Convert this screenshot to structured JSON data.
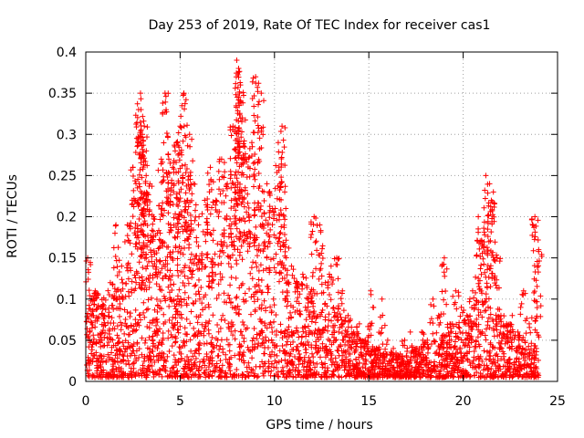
{
  "chart_data": {
    "type": "scatter",
    "title": "Day 253 of 2019, Rate Of TEC Index for receiver cas1",
    "xlabel": "GPS time / hours",
    "ylabel": "ROTI / TECUs",
    "xlim": [
      0,
      25
    ],
    "ylim": [
      0,
      0.4
    ],
    "xticks": [
      0,
      5,
      10,
      15,
      20,
      25
    ],
    "xtick_labels": [
      "0",
      "5",
      "10",
      "15",
      "20",
      "25"
    ],
    "yticks": [
      0,
      0.05,
      0.1,
      0.15,
      0.2,
      0.25,
      0.3,
      0.35,
      0.4
    ],
    "ytick_labels": [
      "0",
      "0.05",
      "0.1",
      "0.15",
      "0.2",
      "0.25",
      "0.3",
      "0.35",
      "0.4"
    ],
    "grid": true,
    "marker": "+",
    "series_color": "#ff0000",
    "series": [
      {
        "name": "cas1 ROTI",
        "x": [
          0.05,
          0.1,
          0.2,
          0.3,
          0.5,
          0.8,
          1.0,
          1.3,
          1.6,
          1.9,
          2.2,
          2.5,
          2.8,
          2.9,
          3.0,
          3.1,
          3.2,
          3.4,
          3.6,
          3.8,
          4.0,
          4.2,
          4.4,
          4.6,
          4.8,
          5.0,
          5.2,
          5.4,
          5.5,
          5.7,
          6.0,
          6.3,
          6.6,
          6.9,
          7.2,
          7.5,
          7.8,
          8.0,
          8.1,
          8.2,
          8.3,
          8.5,
          8.8,
          9.0,
          9.3,
          9.6,
          9.9,
          10.2,
          10.4,
          10.6,
          10.9,
          11.2,
          11.5,
          11.8,
          12.1,
          12.4,
          12.7,
          13.0,
          13.3,
          13.6,
          13.9,
          14.2,
          14.5,
          14.8,
          15.1,
          15.4,
          15.7,
          16.0,
          16.3,
          16.6,
          16.9,
          17.2,
          17.5,
          17.8,
          18.1,
          18.4,
          18.7,
          19.0,
          19.3,
          19.6,
          19.9,
          20.2,
          20.5,
          20.8,
          21.0,
          21.2,
          21.4,
          21.6,
          21.8,
          22.0,
          22.3,
          22.6,
          22.9,
          23.2,
          23.5,
          23.8,
          24.0
        ],
        "y": [
          0.02,
          0.15,
          0.06,
          0.1,
          0.11,
          0.09,
          0.08,
          0.12,
          0.19,
          0.14,
          0.19,
          0.26,
          0.33,
          0.35,
          0.3,
          0.31,
          0.25,
          0.24,
          0.2,
          0.18,
          0.27,
          0.35,
          0.27,
          0.26,
          0.29,
          0.31,
          0.35,
          0.22,
          0.3,
          0.24,
          0.2,
          0.22,
          0.26,
          0.22,
          0.27,
          0.24,
          0.31,
          0.39,
          0.38,
          0.36,
          0.32,
          0.27,
          0.29,
          0.37,
          0.35,
          0.24,
          0.21,
          0.29,
          0.31,
          0.21,
          0.14,
          0.12,
          0.13,
          0.1,
          0.2,
          0.19,
          0.12,
          0.14,
          0.15,
          0.11,
          0.08,
          0.06,
          0.07,
          0.05,
          0.11,
          0.04,
          0.1,
          0.05,
          0.04,
          0.03,
          0.05,
          0.06,
          0.04,
          0.06,
          0.05,
          0.1,
          0.08,
          0.15,
          0.07,
          0.11,
          0.09,
          0.08,
          0.11,
          0.2,
          0.17,
          0.25,
          0.24,
          0.23,
          0.15,
          0.08,
          0.07,
          0.08,
          0.06,
          0.11,
          0.07,
          0.2,
          0.16
        ]
      }
    ],
    "dense_band": {
      "description_values": "dense cloud of low ROTI values across all hours",
      "x_start": 0,
      "x_end": 24,
      "y_min": 0.005,
      "y_max_by_hour": [
        0.1,
        0.09,
        0.1,
        0.11,
        0.12,
        0.12,
        0.13,
        0.14,
        0.16,
        0.16,
        0.14,
        0.11,
        0.1,
        0.08,
        0.06,
        0.04,
        0.03,
        0.03,
        0.04,
        0.05,
        0.07,
        0.09,
        0.07,
        0.05,
        0.04
      ]
    }
  }
}
